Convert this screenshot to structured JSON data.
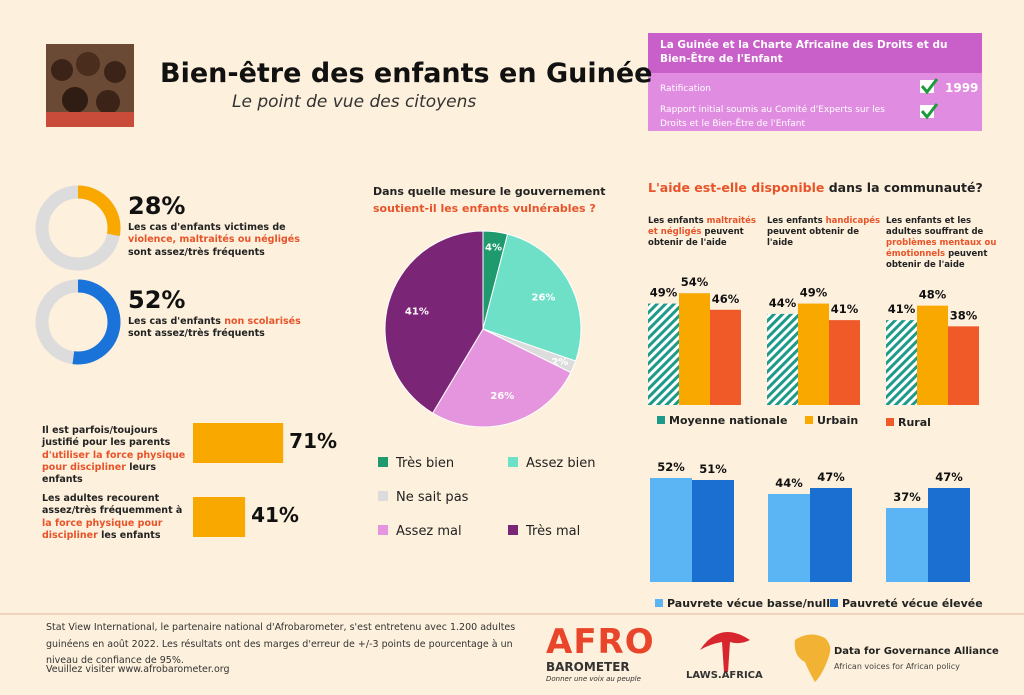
{
  "header": {
    "title": "Bien-être des enfants en Guinée",
    "subtitle": "Le point de vue des citoyens"
  },
  "charter": {
    "title": "La Guinée et la Charte Africaine des Droits et du Bien-Être de l'Enfant",
    "rows": [
      {
        "label": "Ratification",
        "value": "1999"
      },
      {
        "label": "Rapport initial soumis au Comité d'Experts sur les Droits et le Bien-Être de l'Enfant"
      }
    ]
  },
  "chart_data": [
    {
      "type": "donut",
      "values": [
        28
      ],
      "value_labels": [
        "28%"
      ],
      "color": "#f9a800",
      "track_color": "#dcdcdc",
      "caption": [
        {
          "text": "Les cas d'enfants victimes de ",
          "color": "#222222"
        },
        {
          "text": "violence, maltraités ou négligés",
          "color": "#e8542a"
        },
        {
          "text": " sont assez/très fréquents",
          "color": "#222222"
        }
      ]
    },
    {
      "type": "donut",
      "values": [
        52
      ],
      "value_labels": [
        "52%"
      ],
      "color": "#1a73d9",
      "track_color": "#dcdcdc",
      "caption": [
        {
          "text": "Les cas d'enfants ",
          "color": "#222222"
        },
        {
          "text": "non scolarisés",
          "color": "#e8542a"
        },
        {
          "text": " sont assez/très fréquents",
          "color": "#222222"
        }
      ]
    },
    {
      "type": "hbar",
      "values": [
        71,
        41
      ],
      "value_labels": [
        "71%",
        "41%"
      ],
      "color": "#f9a800",
      "captions": [
        [
          {
            "text": "Il est parfois/toujours justifié pour les parents ",
            "color": "#222222"
          },
          {
            "text": "d'utiliser la force physique pour discipliner",
            "color": "#e8542a"
          },
          {
            "text": " leurs enfants",
            "color": "#222222"
          }
        ],
        [
          {
            "text": "Les adultes recourent assez/très fréquemment à ",
            "color": "#222222"
          },
          {
            "text": "la force physique pour discipliner",
            "color": "#e8542a"
          },
          {
            "text": " les enfants",
            "color": "#222222"
          }
        ]
      ]
    },
    {
      "type": "pie",
      "title": [
        {
          "text": "Dans quelle mesure le gouvernement ",
          "color": "#222222"
        },
        {
          "text": "soutient-il les enfants vulnérables ?",
          "color": "#e8542a"
        }
      ],
      "categories": [
        "Très bien",
        "Assez bien",
        "Ne sait pas",
        "Assez mal",
        "Très mal"
      ],
      "values": [
        4,
        26,
        2,
        26,
        41
      ],
      "value_labels": [
        "4%",
        "26%",
        "2%",
        "26%",
        "41%"
      ],
      "colors": [
        "#1e9a6e",
        "#6fe0c8",
        "#dcdcdc",
        "#e595dd",
        "#7b2577"
      ]
    },
    {
      "type": "grouped_bar",
      "title": [
        {
          "text": "L'aide est-elle disponible",
          "color": "#e8542a"
        },
        {
          "text": " dans la communauté?",
          "color": "#222222"
        }
      ],
      "group_titles": [
        [
          {
            "text": "Les enfants ",
            "color": "#222222"
          },
          {
            "text": "maltraités et négligés",
            "color": "#e8542a"
          },
          {
            "text": " peuvent obtenir de l'aide",
            "color": "#222222"
          }
        ],
        [
          {
            "text": "Les enfants ",
            "color": "#222222"
          },
          {
            "text": "handicapés",
            "color": "#e8542a"
          },
          {
            "text": " peuvent obtenir de l'aide",
            "color": "#222222"
          }
        ],
        [
          {
            "text": "Les enfants et les adultes souffrant de ",
            "color": "#222222"
          },
          {
            "text": "problèmes mentaux ou émotionnels",
            "color": "#e8542a"
          },
          {
            "text": " peuvent obtenir de l'aide",
            "color": "#222222"
          }
        ]
      ],
      "series": [
        {
          "name": "Moyenne nationale",
          "color": "#1e9a8a",
          "pattern": "hatch",
          "values": [
            49,
            44,
            41
          ],
          "value_labels": [
            "49%",
            "44%",
            "41%"
          ]
        },
        {
          "name": "Urbain",
          "color": "#f9a800",
          "values": [
            54,
            49,
            48
          ],
          "value_labels": [
            "54%",
            "49%",
            "48%"
          ]
        },
        {
          "name": "Rural",
          "color": "#f05a28",
          "values": [
            46,
            41,
            38
          ],
          "value_labels": [
            "46%",
            "41%",
            "38%"
          ]
        }
      ]
    },
    {
      "type": "grouped_bar",
      "series": [
        {
          "name": "Pauvrete vécue basse/nulle",
          "color": "#5bb5f5",
          "values": [
            52,
            44,
            37
          ],
          "value_labels": [
            "52%",
            "44%",
            "37%"
          ]
        },
        {
          "name": "Pauvreté vécue élevée",
          "color": "#1a6fd1",
          "values": [
            51,
            47,
            47
          ],
          "value_labels": [
            "51%",
            "47%",
            "47%"
          ]
        }
      ]
    }
  ],
  "footer": {
    "text": "Stat View International, le partenaire national d'Afrobarometer, s'est entretenu avec 1.200 adultes guinéens en août 2022. Les résultats ont des marges d'erreur de +/-3 points de pourcentage à un niveau de confiance de 95%.",
    "link": "Veuillez visiter www.afrobarometer.org"
  },
  "logos": {
    "afro": "AFRO",
    "barometer": "BAROMETER",
    "tagline": "Donner une voix au peuple",
    "laws": "LAWS.AFRICA",
    "dga": "Data for Governance Alliance",
    "dga_tagline": "African voices for African policy"
  }
}
